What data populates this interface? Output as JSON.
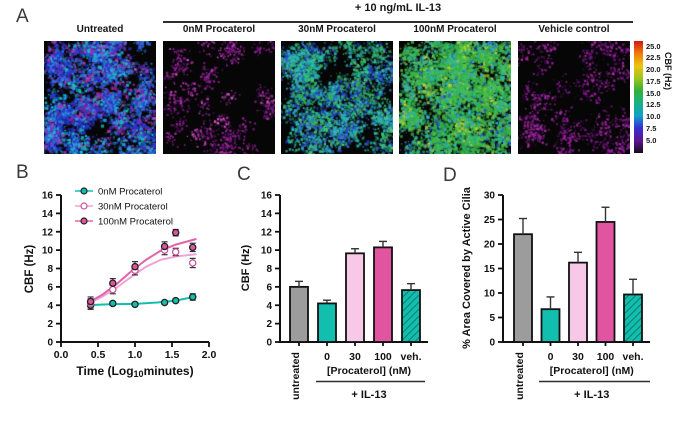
{
  "figure": {
    "panels": {
      "a": "A",
      "b": "B",
      "c": "C",
      "d": "D"
    }
  },
  "panelA": {
    "treatment_header": "+ 10 ng/mL IL-13",
    "images": [
      {
        "label": "Untreated",
        "seed": 7,
        "clusters": 95,
        "dots": 55,
        "spread": 10,
        "dot": 2.3,
        "palette": [
          {
            "c": "#2033cf",
            "w": 3
          },
          {
            "c": "#2e66e2",
            "w": 2
          },
          {
            "c": "#2fb0e8",
            "w": 1.6
          },
          {
            "c": "#18c2cc",
            "w": 1.2
          },
          {
            "c": "#b62fae",
            "w": 1.4
          },
          {
            "c": "#7c1f96",
            "w": 0.8
          }
        ]
      },
      {
        "label": "0nM Procaterol",
        "seed": 11,
        "clusters": 42,
        "dots": 26,
        "spread": 9,
        "dot": 1.7,
        "palette": [
          {
            "c": "#a21fa8",
            "w": 3
          },
          {
            "c": "#c93ec4",
            "w": 1
          },
          {
            "c": "#671378",
            "w": 1.4
          },
          {
            "c": "#e058d0",
            "w": 0.4
          }
        ]
      },
      {
        "label": "30nM Procaterol",
        "seed": 23,
        "clusters": 90,
        "dots": 50,
        "spread": 10,
        "dot": 2.1,
        "palette": [
          {
            "c": "#2fb4cc",
            "w": 2
          },
          {
            "c": "#25c49e",
            "w": 2
          },
          {
            "c": "#2f61d8",
            "w": 1.6
          },
          {
            "c": "#36b248",
            "w": 1.4
          },
          {
            "c": "#2038c8",
            "w": 1
          },
          {
            "c": "#57c874",
            "w": 0.6
          }
        ]
      },
      {
        "label": "100nM Procaterol",
        "seed": 41,
        "clusters": 125,
        "dots": 62,
        "spread": 10.5,
        "dot": 2.3,
        "palette": [
          {
            "c": "#35b23c",
            "w": 3
          },
          {
            "c": "#4cc24f",
            "w": 2
          },
          {
            "c": "#27b894",
            "w": 1.4
          },
          {
            "c": "#33a9d4",
            "w": 1
          },
          {
            "c": "#b9d432",
            "w": 0.8
          },
          {
            "c": "#2547c9",
            "w": 0.4
          }
        ]
      },
      {
        "label": "Vehicle control",
        "seed": 57,
        "clusters": 48,
        "dots": 26,
        "spread": 10,
        "dot": 1.8,
        "palette": [
          {
            "c": "#9c1ca8",
            "w": 3
          },
          {
            "c": "#bb2fb4",
            "w": 1.2
          },
          {
            "c": "#5c0f70",
            "w": 1.2
          }
        ]
      }
    ],
    "colorbar": {
      "label": "CBF (Hz)",
      "ticks": [
        "25.0",
        "22.5",
        "20.0",
        "17.5",
        "15.0",
        "12.5",
        "10.0",
        "7.5",
        "5.0"
      ],
      "gradient": [
        "#170a1c",
        "#5f1390",
        "#3530cf",
        "#14a0c8",
        "#16b287",
        "#32b136",
        "#9ec41e",
        "#ecc40f",
        "#f07c0c",
        "#d31414"
      ]
    }
  },
  "chart_data": [
    {
      "id": "panelB",
      "type": "line",
      "xlabel": "Time (Log10minutes)",
      "xlabel_parts": {
        "pre": "Time (Log",
        "sub": "10",
        "post": "minutes)"
      },
      "ylabel": "CBF (Hz)",
      "xlim": [
        0.0,
        2.0
      ],
      "ylim": [
        0,
        16
      ],
      "xtick_labels": [
        "0.0",
        "0.5",
        "1.0",
        "1.5",
        "2.0"
      ],
      "ytick_labels": [
        "0",
        "2",
        "4",
        "6",
        "8",
        "10",
        "12",
        "14",
        "16"
      ],
      "legend_position": "top-left",
      "x": [
        0.4,
        0.7,
        1.0,
        1.4,
        1.55,
        1.78
      ],
      "series": [
        {
          "name": "0nM Procaterol",
          "color": "#12bfae",
          "marker": "filled",
          "marker_stroke": "#222222",
          "y": [
            4.0,
            4.2,
            4.1,
            4.3,
            4.5,
            4.9
          ],
          "err": [
            0.45,
            0.2,
            0.15,
            0.2,
            0.2,
            0.35
          ],
          "fit_color": "#12bfae",
          "fit": [
            [
              0.38,
              4.02
            ],
            [
              0.7,
              4.12
            ],
            [
              1.0,
              4.15
            ],
            [
              1.3,
              4.3
            ],
            [
              1.55,
              4.5
            ],
            [
              1.82,
              4.95
            ]
          ]
        },
        {
          "name": "30nM Procaterol",
          "color": "#ffffff",
          "marker": "open",
          "marker_stroke": "#c9549c",
          "y": [
            4.2,
            5.7,
            7.8,
            10.0,
            9.8,
            8.6
          ],
          "err": [
            0.5,
            0.45,
            0.5,
            0.5,
            0.4,
            0.5
          ],
          "fit_color": "#f2a3d6",
          "fit": [
            [
              0.38,
              4.25
            ],
            [
              0.55,
              4.9
            ],
            [
              0.75,
              5.9
            ],
            [
              0.95,
              7.1
            ],
            [
              1.15,
              8.2
            ],
            [
              1.35,
              8.95
            ],
            [
              1.55,
              9.3
            ],
            [
              1.82,
              9.55
            ]
          ]
        },
        {
          "name": "100nM Procaterol",
          "color": "#e1549f",
          "marker": "filled",
          "marker_stroke": "#222222",
          "y": [
            4.4,
            6.4,
            8.2,
            10.4,
            11.9,
            10.3
          ],
          "err": [
            0.5,
            0.5,
            0.55,
            0.5,
            0.35,
            0.45
          ],
          "fit_color": "#e263ab",
          "fit": [
            [
              0.38,
              4.35
            ],
            [
              0.55,
              5.1
            ],
            [
              0.75,
              6.3
            ],
            [
              0.95,
              7.7
            ],
            [
              1.15,
              8.95
            ],
            [
              1.35,
              9.95
            ],
            [
              1.55,
              10.6
            ],
            [
              1.82,
              11.2
            ]
          ]
        }
      ]
    },
    {
      "id": "panelC",
      "type": "bar",
      "ylabel": "CBF (Hz)",
      "ylim": [
        0,
        16
      ],
      "ystep": 2,
      "ytick_labels": [
        "0",
        "2",
        "4",
        "6",
        "8",
        "10",
        "12",
        "14",
        "16"
      ],
      "categories": [
        "untreated",
        "0",
        "30",
        "100",
        "veh."
      ],
      "values": [
        6.0,
        4.2,
        9.65,
        10.3,
        5.65
      ],
      "errors": [
        0.6,
        0.35,
        0.5,
        0.65,
        0.7
      ],
      "bar_styles": [
        "gray",
        "teal",
        "pink",
        "magenta",
        "teal-hatch"
      ],
      "group_label": "[Procaterol] (nM)",
      "group_sublabel": "+ IL-13"
    },
    {
      "id": "panelD",
      "type": "bar",
      "ylabel": "% Area Covered by Active Cilia",
      "ylim": [
        0,
        30
      ],
      "ystep": 5,
      "ytick_labels": [
        "0",
        "5",
        "10",
        "15",
        "20",
        "25",
        "30"
      ],
      "categories": [
        "untreated",
        "0",
        "30",
        "100",
        "veh."
      ],
      "values": [
        22.0,
        6.7,
        16.2,
        24.5,
        9.7
      ],
      "errors": [
        3.2,
        2.5,
        2.1,
        3.0,
        3.1
      ],
      "bar_styles": [
        "gray",
        "teal",
        "pink",
        "magenta",
        "teal-hatch"
      ],
      "group_label": "[Procaterol] (nM)",
      "group_sublabel": "+ IL-13"
    }
  ],
  "colors": {
    "teal": "#12bfae",
    "pink": "#f8c8e8",
    "magenta": "#e1549f",
    "gray": "#9c9c9c",
    "hatch_dark": "#0a8174",
    "axis": "#111111",
    "error": "#333333"
  }
}
